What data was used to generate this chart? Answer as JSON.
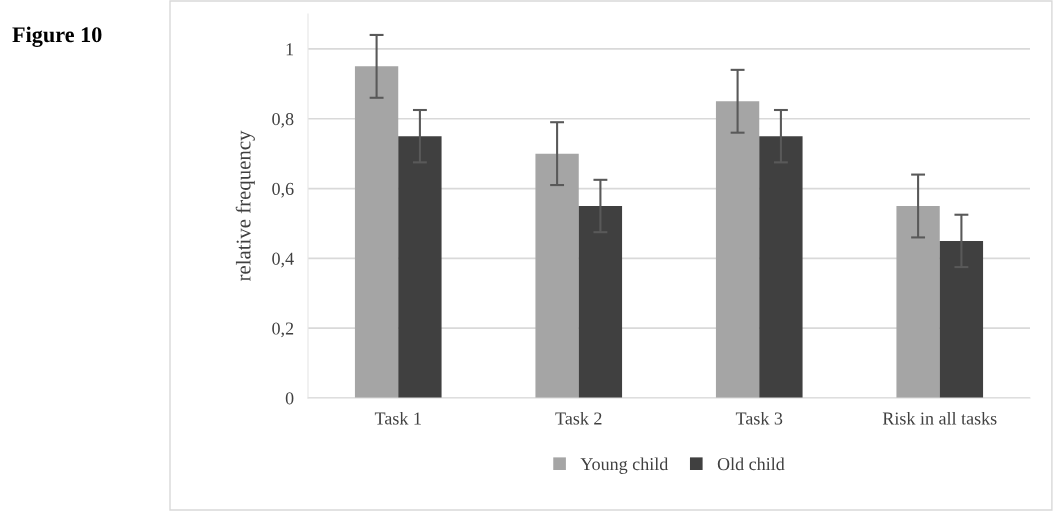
{
  "chart_data": {
    "type": "bar",
    "ylabel": "relative frequency",
    "annotations": [
      "Figure 10"
    ],
    "categories": [
      "Task 1",
      "Task 2",
      "Task 3",
      "Risk in all tasks"
    ],
    "series": [
      {
        "name": "Young child",
        "color": "#a5a5a5",
        "values": [
          0.95,
          0.7,
          0.85,
          0.55
        ],
        "errors": [
          0.09,
          0.09,
          0.09,
          0.09
        ]
      },
      {
        "name": "Old child",
        "color": "#404040",
        "values": [
          0.75,
          0.55,
          0.75,
          0.45
        ],
        "errors": [
          0.075,
          0.075,
          0.075,
          0.075
        ]
      }
    ],
    "ylim": [
      0,
      1.1
    ],
    "yticks": [
      {
        "value": 0,
        "label": "0"
      },
      {
        "value": 0.2,
        "label": "0,2"
      },
      {
        "value": 0.4,
        "label": "0,4"
      },
      {
        "value": 0.6,
        "label": "0,6"
      },
      {
        "value": 0.8,
        "label": "0,8"
      },
      {
        "value": 1,
        "label": "1"
      }
    ],
    "grid": "y",
    "legend": "bottom"
  }
}
